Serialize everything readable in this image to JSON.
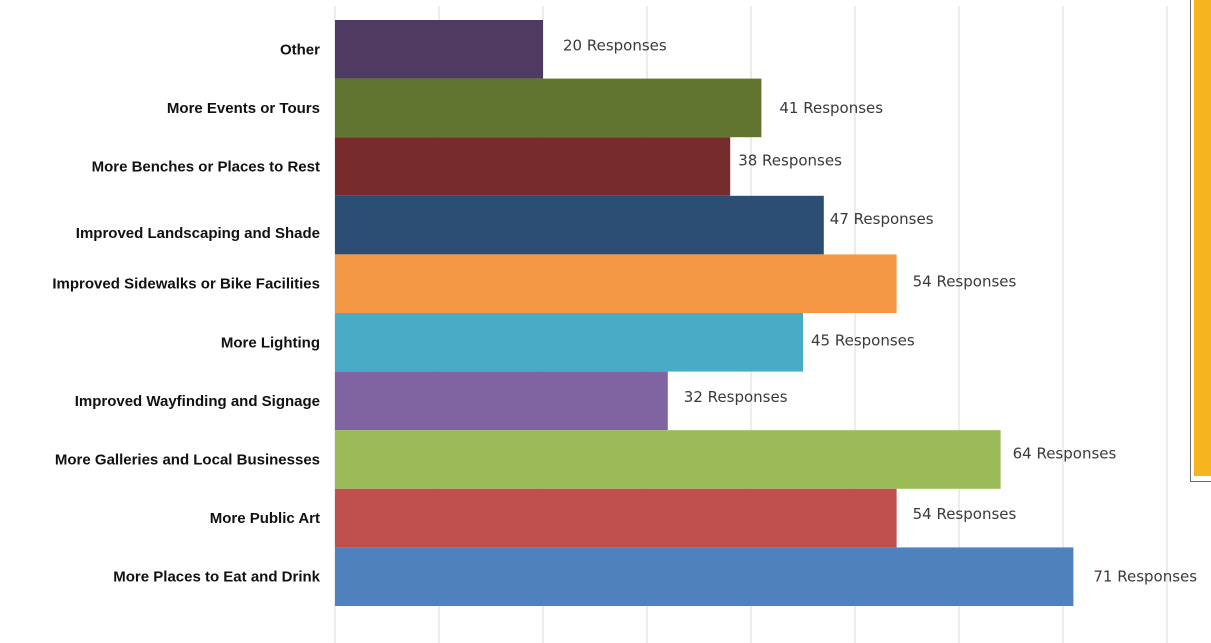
{
  "chart_data": {
    "type": "bar",
    "orientation": "horizontal",
    "title": "",
    "xlabel": "",
    "ylabel": "",
    "xlim": [
      0,
      80
    ],
    "grid": true,
    "legend": "none",
    "categories": [
      "Other",
      "More Events or Tours",
      "More Benches or Places to Rest",
      "Improved Landscaping and Shade",
      "Improved Sidewalks or Bike Facilities",
      "More Lighting",
      "Improved Wayfinding and Signage",
      "More Galleries and Local Businesses",
      "More Public Art",
      "More Places to Eat and Drink"
    ],
    "values": [
      20,
      41,
      38,
      47,
      54,
      45,
      32,
      64,
      54,
      71
    ],
    "data_labels": [
      "20  Responses",
      "41  Responses",
      "38 Responses",
      "47 Responses",
      "54 Responses",
      "45 Responses",
      "32 Responses",
      "64 Responses",
      "54 Responses",
      "71 Responses"
    ],
    "colors": [
      "#4f3a61",
      "#617530",
      "#762c2c",
      "#2d4e74",
      "#f59845",
      "#4aabc6",
      "#8064a2",
      "#9bbb59",
      "#c0504d",
      "#4f81bd"
    ]
  },
  "side_panel": {
    "color": "#f6b51e"
  }
}
